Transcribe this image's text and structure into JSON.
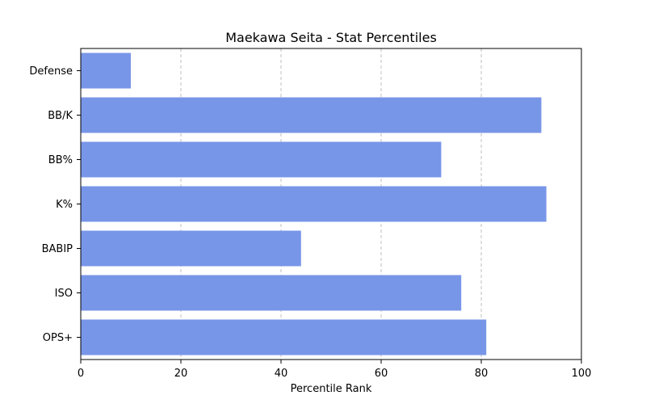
{
  "chart_data": {
    "type": "bar",
    "orientation": "horizontal",
    "title": "Maekawa Seita - Stat Percentiles",
    "xlabel": "Percentile Rank",
    "ylabel": "",
    "categories": [
      "Defense",
      "BB/K",
      "BB%",
      "K%",
      "BABIP",
      "ISO",
      "OPS+"
    ],
    "values": [
      10,
      92,
      72,
      93,
      44,
      76,
      81
    ],
    "xlim": [
      0,
      100
    ],
    "xticks": [
      "0",
      "20",
      "40",
      "60",
      "80",
      "100"
    ],
    "grid": "x-axis, dashed",
    "bar_color": "#7896e8"
  }
}
